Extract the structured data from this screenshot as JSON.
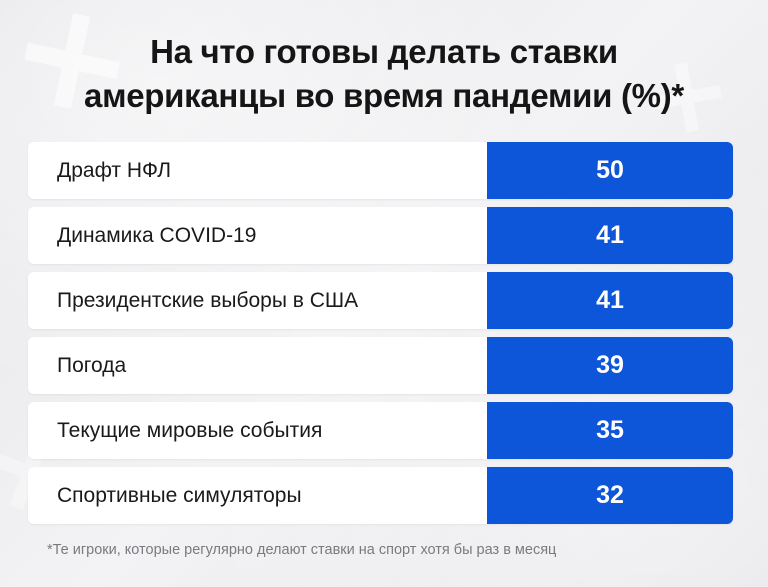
{
  "title": {
    "line1": "На что готовы делать ставки",
    "line2": "американцы во время пандемии (%)*"
  },
  "footnote": "*Те игроки, которые регулярно делают ставки на спорт хотя бы раз в месяц",
  "colors": {
    "value_cell": "#0d55d9",
    "row_bg": "#ffffff",
    "page_bg": "#ececef"
  },
  "chart_data": {
    "type": "table",
    "title": "На что готовы делать ставки американцы во время пандемии (%)*",
    "categories": [
      "Драфт НФЛ",
      "Динамика COVID-19",
      "Президентские выборы в США",
      "Погода",
      "Текущие мировые события",
      "Спортивные симуляторы"
    ],
    "values": [
      50,
      41,
      41,
      39,
      35,
      32
    ],
    "xlabel": "",
    "ylabel": ""
  }
}
